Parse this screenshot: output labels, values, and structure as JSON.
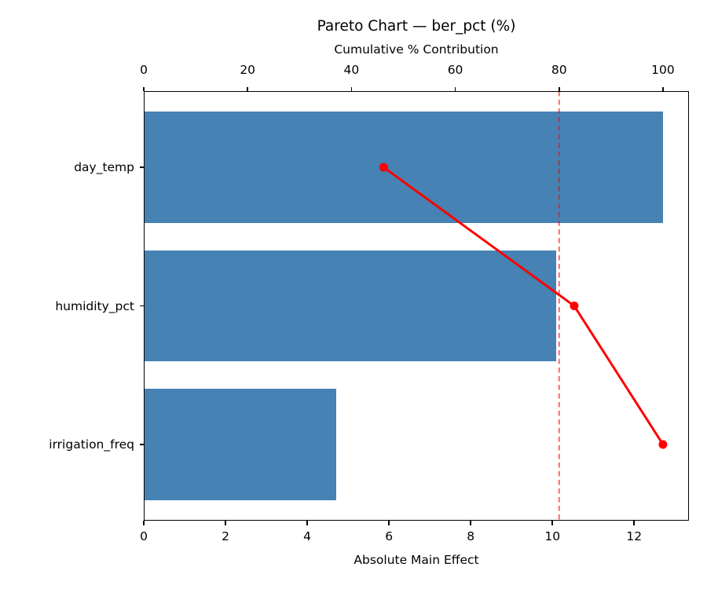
{
  "chart_data": {
    "type": "bar",
    "subtype": "pareto",
    "orientation": "horizontal",
    "title": "Pareto Chart — ber_pct (%)",
    "categories": [
      "day_temp",
      "humidity_pct",
      "irrigation_freq"
    ],
    "values": [
      12.7,
      10.1,
      4.7
    ],
    "series": [
      {
        "name": "Absolute Main Effect",
        "type": "bar",
        "values": [
          12.7,
          10.1,
          4.7
        ]
      },
      {
        "name": "Cumulative % Contribution",
        "type": "line",
        "values": [
          46.2,
          82.9,
          100.0
        ]
      }
    ],
    "bottom_axis": {
      "label": "Absolute Main Effect",
      "ticks": [
        0,
        2,
        4,
        6,
        8,
        10,
        12
      ],
      "xlim": [
        0,
        13.34
      ]
    },
    "top_axis": {
      "label": "Cumulative % Contribution",
      "ticks": [
        0,
        20,
        40,
        60,
        80,
        100
      ],
      "xlim": [
        0,
        105
      ]
    },
    "threshold": {
      "value": 80,
      "axis": "top",
      "style": "dashed"
    },
    "colors": {
      "bar": "#4682b4",
      "line": "#ff0000",
      "marker": "#ff0000",
      "threshold": "rgba(255, 0, 0, 0.6)",
      "spine": "#000000",
      "text": "#000000"
    },
    "grid": false
  }
}
